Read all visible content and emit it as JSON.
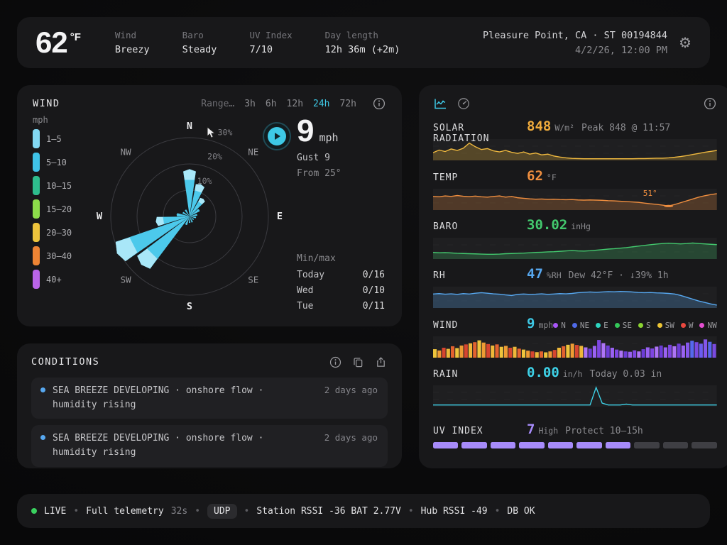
{
  "header": {
    "temp_value": "62",
    "temp_unit": "°F",
    "stats": [
      {
        "label": "Wind",
        "value": "Breezy"
      },
      {
        "label": "Baro",
        "value": "Steady"
      },
      {
        "label": "UV Index",
        "value": "7/10"
      },
      {
        "label": "Day length",
        "value": "12h 36m (+2m)"
      }
    ],
    "location": "Pleasure Point, CA · ST 00194844",
    "datetime": "4/2/26, 12:00 PM",
    "gear_icon": "⚙"
  },
  "wind_panel": {
    "title": "WIND",
    "range_label": "Range…",
    "range_options": [
      "3h",
      "6h",
      "12h",
      "24h",
      "72h"
    ],
    "range_selected": "24h",
    "legend_title": "mph",
    "legend": [
      {
        "label": "1–5",
        "color": "#82d8f2"
      },
      {
        "label": "5–10",
        "color": "#3fc3e8"
      },
      {
        "label": "10–15",
        "color": "#2ebd8d"
      },
      {
        "label": "15–20",
        "color": "#8cdc4a"
      },
      {
        "label": "20–30",
        "color": "#eec43c"
      },
      {
        "label": "30–40",
        "color": "#ee8434"
      },
      {
        "label": "40+",
        "color": "#b964e8"
      }
    ],
    "rose": {
      "compass": [
        "N",
        "NE",
        "E",
        "SE",
        "S",
        "SW",
        "W",
        "NW"
      ],
      "rings": [
        {
          "label": "10%",
          "pct": 10
        },
        {
          "label": "20%",
          "pct": 20
        },
        {
          "label": "30%",
          "pct": 30
        }
      ],
      "petals": [
        {
          "angle": 0,
          "pct": 18
        },
        {
          "angle": 19,
          "pct": 13
        },
        {
          "angle": 38,
          "pct": 8.5
        },
        {
          "angle": 56,
          "pct": 4.5
        },
        {
          "angle": 78,
          "pct": 3
        },
        {
          "angle": 100,
          "pct": 2.5
        },
        {
          "angle": 128,
          "pct": 2
        },
        {
          "angle": 155,
          "pct": 2.5
        },
        {
          "angle": 180,
          "pct": 2.5
        },
        {
          "angle": 203,
          "pct": 3.5
        },
        {
          "angle": 225,
          "pct": 26
        },
        {
          "angle": 243,
          "pct": 31
        },
        {
          "angle": 261,
          "pct": 13
        },
        {
          "angle": 278,
          "pct": 5
        },
        {
          "angle": 300,
          "pct": 3
        },
        {
          "angle": 328,
          "pct": 3
        }
      ],
      "petal_color": "#4cc9eb",
      "petal_tip_color": "#a9e7f8"
    },
    "speed_value": "9",
    "speed_unit": "mph",
    "gust": "Gust 9",
    "from": "From 25°",
    "minmax_title": "Min/max",
    "minmax_rows": [
      {
        "day": "Today",
        "value": "0/16"
      },
      {
        "day": "Wed",
        "value": "0/10"
      },
      {
        "day": "Tue",
        "value": "0/11"
      }
    ]
  },
  "conditions_panel": {
    "title": "CONDITIONS",
    "items": [
      {
        "text": "SEA BREEZE DEVELOPING · onshore flow · humidity rising",
        "time": "2 days ago"
      },
      {
        "text": "SEA BREEZE DEVELOPING · onshore flow · humidity rising",
        "time": "2 days ago"
      },
      {
        "text": "",
        "time": ""
      }
    ]
  },
  "charts_panel": {
    "rows": [
      {
        "id": "solar",
        "label": "SOLAR RADIATION",
        "value": "848",
        "value_color": "#f0ab3c",
        "unit": "W/m²",
        "extra": "Peak 848 @ 11:57",
        "chart": {
          "type": "area",
          "color": "#eeb83f",
          "fill": "rgba(238,184,63,0.26)",
          "values": [
            0.38,
            0.52,
            0.44,
            0.58,
            0.5,
            0.62,
            0.9,
            0.7,
            0.55,
            0.6,
            0.48,
            0.42,
            0.5,
            0.4,
            0.34,
            0.42,
            0.3,
            0.36,
            0.26,
            0.3,
            0.2,
            0.14,
            0.1,
            0.07,
            0.06,
            0.05,
            0.05,
            0.05,
            0.05,
            0.05,
            0.05,
            0.05,
            0.05,
            0.05,
            0.06,
            0.06,
            0.07,
            0.08,
            0.08,
            0.1,
            0.13,
            0.17,
            0.22,
            0.28,
            0.34,
            0.4,
            0.45,
            0.5
          ]
        }
      },
      {
        "id": "temp",
        "label": "TEMP",
        "value": "62",
        "value_color": "#ef8e3f",
        "unit": "°F",
        "extra": "",
        "chart": {
          "type": "area",
          "color": "#ef8e3f",
          "fill": "rgba(239,142,63,0.24)",
          "values": [
            0.7,
            0.68,
            0.73,
            0.7,
            0.75,
            0.71,
            0.69,
            0.72,
            0.68,
            0.66,
            0.7,
            0.73,
            0.66,
            0.7,
            0.63,
            0.6,
            0.57,
            0.55,
            0.56,
            0.54,
            0.55,
            0.53,
            0.52,
            0.53,
            0.51,
            0.5,
            0.51,
            0.5,
            0.49,
            0.47,
            0.46,
            0.44,
            0.42,
            0.4,
            0.38,
            0.34,
            0.3,
            0.27,
            0.23,
            0.18,
            0.26,
            0.36,
            0.46,
            0.56,
            0.66,
            0.74,
            0.8,
            0.85
          ],
          "marker": {
            "index": 39,
            "label": "51°"
          }
        }
      },
      {
        "id": "baro",
        "label": "BARO",
        "value": "30.02",
        "value_color": "#43c96e",
        "unit": "inHg",
        "extra": "",
        "chart": {
          "type": "area",
          "color": "#43c96e",
          "fill": "rgba(67,201,110,0.24)",
          "values": [
            0.32,
            0.3,
            0.31,
            0.29,
            0.27,
            0.26,
            0.25,
            0.24,
            0.23,
            0.22,
            0.22,
            0.23,
            0.25,
            0.26,
            0.27,
            0.28,
            0.3,
            0.32,
            0.33,
            0.35,
            0.36,
            0.38,
            0.4,
            0.42,
            0.4,
            0.39,
            0.41,
            0.44,
            0.47,
            0.5,
            0.52,
            0.55,
            0.58,
            0.62,
            0.66,
            0.7,
            0.74,
            0.77,
            0.8,
            0.82,
            0.8,
            0.78,
            0.8,
            0.83,
            0.8,
            0.78,
            0.76,
            0.74
          ]
        }
      },
      {
        "id": "rh",
        "label": "RH",
        "value": "47",
        "value_color": "#57a8f0",
        "unit": "%RH",
        "extra": "Dew 42°F · ↓39% 1h",
        "chart": {
          "type": "area",
          "color": "#57a8f0",
          "fill": "rgba(87,168,240,0.26)",
          "values": [
            0.72,
            0.74,
            0.71,
            0.73,
            0.7,
            0.74,
            0.72,
            0.76,
            0.79,
            0.76,
            0.73,
            0.71,
            0.67,
            0.64,
            0.7,
            0.72,
            0.7,
            0.71,
            0.73,
            0.7,
            0.72,
            0.74,
            0.73,
            0.75,
            0.79,
            0.81,
            0.83,
            0.81,
            0.83,
            0.85,
            0.84,
            0.86,
            0.85,
            0.83,
            0.8,
            0.79,
            0.8,
            0.78,
            0.77,
            0.75,
            0.72,
            0.64,
            0.54,
            0.44,
            0.34,
            0.26,
            0.18,
            0.12
          ]
        }
      },
      {
        "id": "wind",
        "label": "WIND",
        "value": "9",
        "value_color": "#3ec9e6",
        "unit": "mph",
        "extra": "",
        "dir_legend": [
          {
            "label": "N",
            "color": "#a855f7"
          },
          {
            "label": "NE",
            "color": "#4f6ae8"
          },
          {
            "label": "E",
            "color": "#2dd4bf"
          },
          {
            "label": "SE",
            "color": "#34c759"
          },
          {
            "label": "S",
            "color": "#8bd332"
          },
          {
            "label": "SW",
            "color": "#ecc435"
          },
          {
            "label": "W",
            "color": "#e8483f"
          },
          {
            "label": "NW",
            "color": "#e44fd0"
          }
        ],
        "chart": {
          "type": "bars",
          "values": [
            0.42,
            0.35,
            0.5,
            0.44,
            0.58,
            0.48,
            0.62,
            0.68,
            0.74,
            0.8,
            0.9,
            0.78,
            0.7,
            0.62,
            0.68,
            0.55,
            0.6,
            0.5,
            0.55,
            0.45,
            0.4,
            0.34,
            0.3,
            0.26,
            0.3,
            0.25,
            0.3,
            0.38,
            0.5,
            0.58,
            0.66,
            0.72,
            0.65,
            0.6,
            0.52,
            0.45,
            0.6,
            0.92,
            0.75,
            0.62,
            0.5,
            0.4,
            0.34,
            0.3,
            0.28,
            0.36,
            0.3,
            0.42,
            0.52,
            0.46,
            0.56,
            0.62,
            0.52,
            0.66,
            0.58,
            0.72,
            0.62,
            0.78,
            0.88,
            0.8,
            0.72,
            0.95,
            0.82,
            0.7
          ],
          "regions": [
            {
              "until": 34,
              "palette": [
                "#eec43c",
                "#ee9c34",
                "#d6452f",
                "#eeb83a",
                "#e2622f"
              ]
            },
            {
              "until": 57,
              "palette": [
                "#9a62f2",
                "#7e46e2",
                "#ad74f6",
                "#6c3cd6"
              ]
            },
            {
              "until": 64,
              "palette": [
                "#6b5cf0",
                "#8556ec",
                "#5668ee",
                "#7a4ae0"
              ]
            }
          ]
        }
      },
      {
        "id": "rain",
        "label": "RAIN",
        "value": "0.00",
        "value_color": "#3ed2e8",
        "unit": "in/h",
        "extra": "Today 0.03 in",
        "chart": {
          "type": "line",
          "color": "#3ed2e8",
          "values": [
            0.05,
            0.05,
            0.05,
            0.05,
            0.05,
            0.05,
            0.05,
            0.05,
            0.05,
            0.05,
            0.05,
            0.05,
            0.05,
            0.05,
            0.05,
            0.05,
            0.05,
            0.05,
            0.05,
            0.05,
            0.05,
            0.05,
            0.05,
            0.05,
            0.05,
            0.05,
            0.05,
            1.0,
            0.15,
            0.05,
            0.05,
            0.05,
            0.1,
            0.05,
            0.05,
            0.05,
            0.05,
            0.05,
            0.05,
            0.05,
            0.05,
            0.05,
            0.05,
            0.05,
            0.05,
            0.05,
            0.05,
            0.05
          ]
        }
      },
      {
        "id": "uv",
        "label": "UV INDEX",
        "value": "7",
        "value_color": "#a78bfa",
        "unit": "High",
        "extra": "Protect 10–15h",
        "chart": {
          "type": "segments",
          "total": 10,
          "active": 7,
          "active_color": "#a78bfa",
          "inactive_color": "#3f3f44"
        }
      }
    ]
  },
  "status_bar": {
    "items": [
      {
        "type": "dot"
      },
      {
        "type": "text",
        "style": "bright",
        "text": "LIVE"
      },
      {
        "type": "sep"
      },
      {
        "type": "text",
        "style": "bright",
        "text": "Full telemetry"
      },
      {
        "type": "text",
        "style": "dim",
        "text": "32s"
      },
      {
        "type": "sep"
      },
      {
        "type": "badge",
        "text": "UDP"
      },
      {
        "type": "sep"
      },
      {
        "type": "text",
        "style": "bright",
        "text": "Station RSSI -36 BAT 2.77V"
      },
      {
        "type": "sep"
      },
      {
        "type": "text",
        "style": "bright",
        "text": "Hub RSSI -49"
      },
      {
        "type": "sep"
      },
      {
        "type": "text",
        "style": "bright",
        "text": "DB OK"
      }
    ]
  }
}
